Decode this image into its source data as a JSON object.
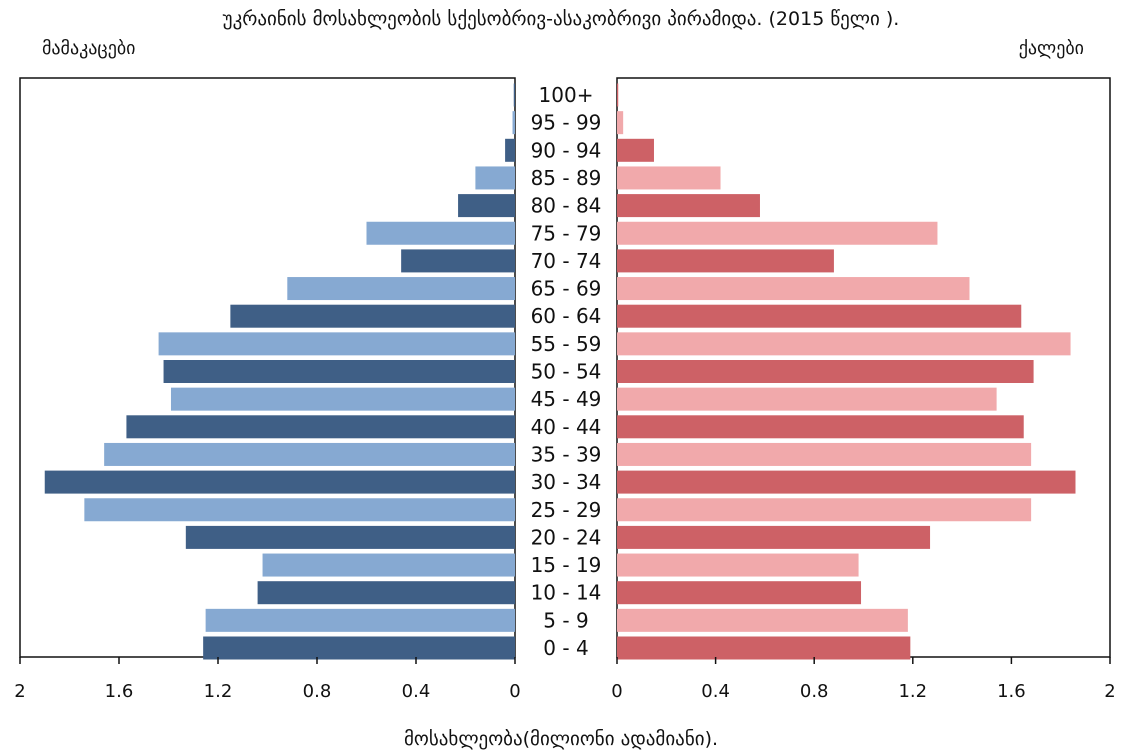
{
  "chart_data": {
    "type": "bar",
    "title": "უკრაინის მოსახლეობის სქესობრივ-ასაკობრივი პირამიდა. (2015 წელი ).",
    "left_label": "მამაკაცები",
    "right_label": "ქალები",
    "xlabel": "მოსახლეობა(მილიონი ადამიანი).",
    "xlim": [
      0,
      2
    ],
    "x_ticks": [
      {
        "value": 0,
        "label": "0"
      },
      {
        "value": 0.4,
        "label": "0.4"
      },
      {
        "value": 0.8,
        "label": "0.8"
      },
      {
        "value": 1.2,
        "label": "1.2"
      },
      {
        "value": 1.6,
        "label": "1.6"
      },
      {
        "value": 2,
        "label": "2"
      }
    ],
    "categories": [
      "100+",
      "95 - 99",
      "90 - 94",
      "85 - 89",
      "80 - 84",
      "75 - 79",
      "70 - 74",
      "65 - 69",
      "60 - 64",
      "55 - 59",
      "50 - 54",
      "45 - 49",
      "40 - 44",
      "35 - 39",
      "30 - 34",
      "25 - 29",
      "20 - 24",
      "15 - 19",
      "10 - 14",
      "5 - 9",
      "0 - 4"
    ],
    "series": [
      {
        "name": "მამაკაცები",
        "values": [
          0.005,
          0.01,
          0.04,
          0.16,
          0.23,
          0.6,
          0.46,
          0.92,
          1.15,
          1.44,
          1.42,
          1.39,
          1.57,
          1.66,
          1.9,
          1.74,
          1.33,
          1.02,
          1.04,
          1.25,
          1.26
        ],
        "colors": [
          "#3f5f86",
          "#86a9d2"
        ]
      },
      {
        "name": "ქალები",
        "values": [
          0.005,
          0.025,
          0.15,
          0.42,
          0.58,
          1.3,
          0.88,
          1.43,
          1.64,
          1.84,
          1.69,
          1.54,
          1.65,
          1.68,
          1.86,
          1.68,
          1.27,
          0.98,
          0.99,
          1.18,
          1.19
        ],
        "colors": [
          "#cd6166",
          "#f1a9ab"
        ]
      }
    ],
    "grid": false,
    "legend": "none"
  }
}
